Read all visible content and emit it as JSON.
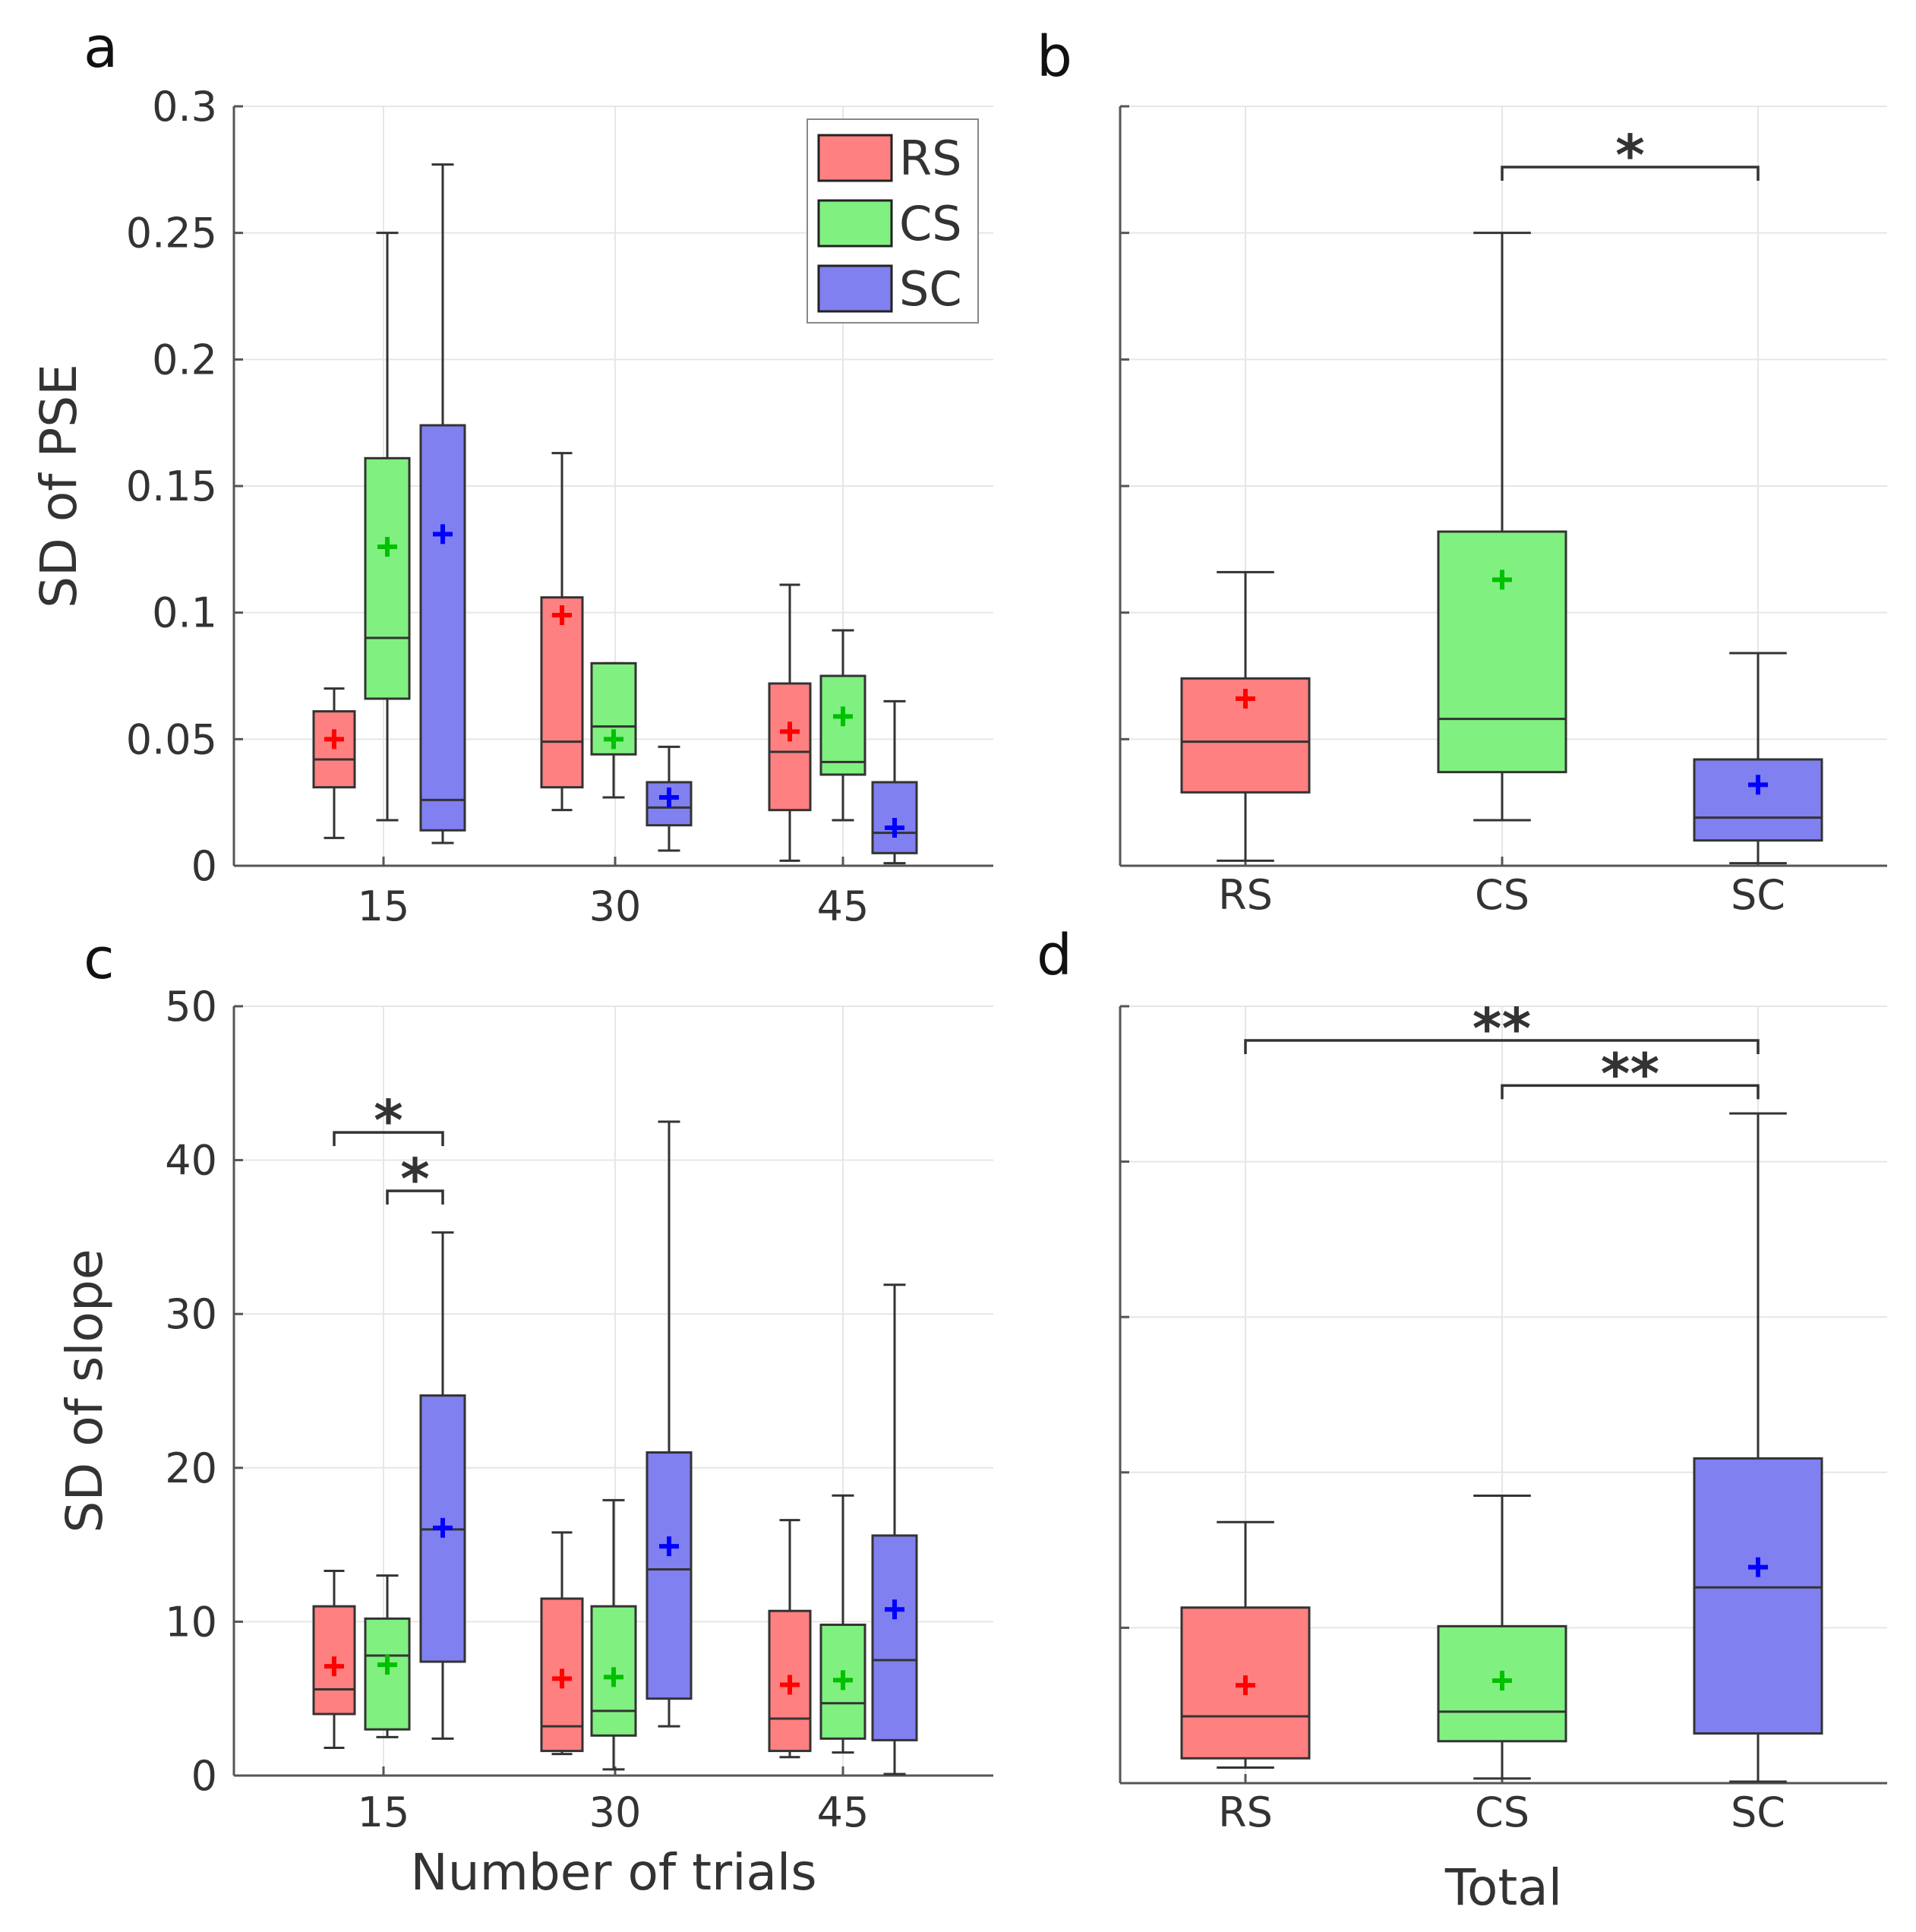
{
  "figure": {
    "colors": {
      "RS": "#ff8080",
      "CS": "#80f080",
      "SC": "#8080f0",
      "RS_mean": "#ff0000",
      "CS_mean": "#00c000",
      "SC_mean": "#0000ff",
      "line": "#333333",
      "grid": "#e6e6e6"
    }
  },
  "chart_data": [
    {
      "panel": "a",
      "type": "box",
      "ylabel": "SD of PSE",
      "xlabel": "",
      "ylim": [
        0,
        0.3
      ],
      "yticks": [
        0,
        0.05,
        0.1,
        0.15,
        0.2,
        0.25,
        0.3
      ],
      "ytick_labels": [
        "0",
        "0.05",
        "0.1",
        "0.15",
        "0.2",
        "0.25",
        "0.3"
      ],
      "categories": [
        "15",
        "30",
        "45"
      ],
      "legend": {
        "position": "top-right",
        "entries": [
          "RS",
          "CS",
          "SC"
        ]
      },
      "series": [
        {
          "name": "RS",
          "boxes": [
            {
              "min": 0.011,
              "q1": 0.031,
              "median": 0.042,
              "q3": 0.061,
              "max": 0.07,
              "mean": 0.05
            },
            {
              "min": 0.022,
              "q1": 0.031,
              "median": 0.049,
              "q3": 0.106,
              "max": 0.163,
              "mean": 0.099
            },
            {
              "min": 0.002,
              "q1": 0.022,
              "median": 0.045,
              "q3": 0.072,
              "max": 0.111,
              "mean": 0.053
            }
          ]
        },
        {
          "name": "CS",
          "boxes": [
            {
              "min": 0.018,
              "q1": 0.066,
              "median": 0.09,
              "q3": 0.161,
              "max": 0.25,
              "mean": 0.126
            },
            {
              "min": 0.027,
              "q1": 0.044,
              "median": 0.055,
              "q3": 0.08,
              "max": 0.08,
              "mean": 0.05
            },
            {
              "min": 0.018,
              "q1": 0.036,
              "median": 0.041,
              "q3": 0.075,
              "max": 0.093,
              "mean": 0.059
            }
          ]
        },
        {
          "name": "SC",
          "boxes": [
            {
              "min": 0.009,
              "q1": 0.014,
              "median": 0.026,
              "q3": 0.174,
              "max": 0.277,
              "mean": 0.131
            },
            {
              "min": 0.006,
              "q1": 0.016,
              "median": 0.023,
              "q3": 0.033,
              "max": 0.047,
              "mean": 0.027
            },
            {
              "min": 0.001,
              "q1": 0.005,
              "median": 0.013,
              "q3": 0.033,
              "max": 0.065,
              "mean": 0.015
            }
          ]
        }
      ],
      "significance": []
    },
    {
      "panel": "b",
      "type": "box",
      "ylabel": "",
      "xlabel": "",
      "ylim": [
        0,
        0.3
      ],
      "yticks": [
        0,
        0.05,
        0.1,
        0.15,
        0.2,
        0.25,
        0.3
      ],
      "ytick_labels": [],
      "categories": [
        "RS",
        "CS",
        "SC"
      ],
      "series": [
        {
          "name": "RS",
          "boxes": [
            {
              "min": 0.002,
              "q1": 0.029,
              "median": 0.049,
              "q3": 0.074,
              "max": 0.116,
              "mean": 0.066
            }
          ]
        },
        {
          "name": "CS",
          "boxes": [
            {
              "min": 0.018,
              "q1": 0.037,
              "median": 0.058,
              "q3": 0.132,
              "max": 0.25,
              "mean": 0.113
            }
          ]
        },
        {
          "name": "SC",
          "boxes": [
            {
              "min": 0.001,
              "q1": 0.01,
              "median": 0.019,
              "q3": 0.042,
              "max": 0.084,
              "mean": 0.032
            }
          ]
        }
      ],
      "significance": [
        {
          "from": "CS",
          "to": "SC",
          "label": "*",
          "y": 0.276
        }
      ]
    },
    {
      "panel": "c",
      "type": "box",
      "ylabel": "SD of slope",
      "xlabel": "Number of trials",
      "ylim": [
        0,
        50
      ],
      "yticks": [
        0,
        10,
        20,
        30,
        40,
        50
      ],
      "ytick_labels": [
        "0",
        "10",
        "20",
        "30",
        "40",
        "50"
      ],
      "categories": [
        "15",
        "30",
        "45"
      ],
      "series": [
        {
          "name": "RS",
          "boxes": [
            {
              "min": 1.8,
              "q1": 4.0,
              "median": 5.6,
              "q3": 11.0,
              "max": 13.3,
              "mean": 7.1
            },
            {
              "min": 1.4,
              "q1": 1.6,
              "median": 3.2,
              "q3": 11.5,
              "max": 15.8,
              "mean": 6.3
            },
            {
              "min": 1.2,
              "q1": 1.6,
              "median": 3.7,
              "q3": 10.7,
              "max": 16.6,
              "mean": 5.9
            }
          ]
        },
        {
          "name": "CS",
          "boxes": [
            {
              "min": 2.5,
              "q1": 3.0,
              "median": 7.8,
              "q3": 10.2,
              "max": 13.0,
              "mean": 7.2
            },
            {
              "min": 0.4,
              "q1": 2.6,
              "median": 4.2,
              "q3": 11.0,
              "max": 17.9,
              "mean": 6.4
            },
            {
              "min": 1.5,
              "q1": 2.4,
              "median": 4.7,
              "q3": 9.8,
              "max": 18.2,
              "mean": 6.2
            }
          ]
        },
        {
          "name": "SC",
          "boxes": [
            {
              "min": 2.4,
              "q1": 7.4,
              "median": 16.0,
              "q3": 24.7,
              "max": 35.3,
              "mean": 16.1
            },
            {
              "min": 3.2,
              "q1": 5.0,
              "median": 13.4,
              "q3": 21.0,
              "max": 42.5,
              "mean": 14.9
            },
            {
              "min": 0.1,
              "q1": 2.3,
              "median": 7.5,
              "q3": 15.6,
              "max": 31.9,
              "mean": 10.8
            }
          ]
        }
      ],
      "significance": [
        {
          "from": "RS@15",
          "to": "SC@15",
          "label": "*",
          "y": 41.8
        },
        {
          "from": "CS@15",
          "to": "SC@15",
          "label": "*",
          "y": 38.0
        }
      ]
    },
    {
      "panel": "d",
      "type": "box",
      "ylabel": "",
      "xlabel": "Total",
      "ylim": [
        0,
        50
      ],
      "yticks": [
        0,
        10,
        20,
        30,
        40,
        50
      ],
      "ytick_labels": [],
      "categories": [
        "RS",
        "CS",
        "SC"
      ],
      "series": [
        {
          "name": "RS",
          "boxes": [
            {
              "min": 1.0,
              "q1": 1.6,
              "median": 4.3,
              "q3": 11.3,
              "max": 16.8,
              "mean": 6.3
            }
          ]
        },
        {
          "name": "CS",
          "boxes": [
            {
              "min": 0.3,
              "q1": 2.7,
              "median": 4.6,
              "q3": 10.1,
              "max": 18.5,
              "mean": 6.6
            }
          ]
        },
        {
          "name": "SC",
          "boxes": [
            {
              "min": 0.1,
              "q1": 3.2,
              "median": 12.6,
              "q3": 20.9,
              "max": 43.1,
              "mean": 13.9
            }
          ]
        }
      ],
      "significance": [
        {
          "from": "RS",
          "to": "SC",
          "label": "**",
          "y": 47.8
        },
        {
          "from": "CS",
          "to": "SC",
          "label": "**",
          "y": 44.9
        }
      ]
    }
  ]
}
